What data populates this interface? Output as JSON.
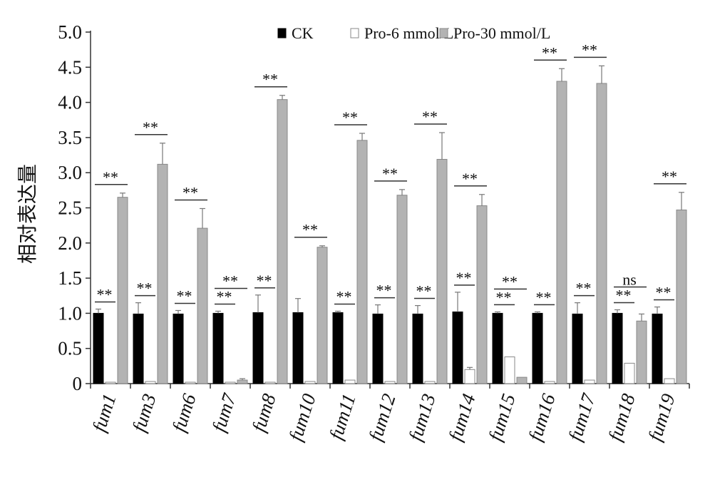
{
  "chart_data": {
    "type": "bar",
    "ylabel": "相对表达量",
    "ylim": [
      0,
      5.0
    ],
    "yticks": [
      "0",
      "0.5",
      "1.0",
      "1.5",
      "2.0",
      "2.5",
      "3.0",
      "3.5",
      "4.0",
      "4.5",
      "5.0"
    ],
    "legend_position": "top-right",
    "categories": [
      "fum1",
      "fum3",
      "fum6",
      "fum7",
      "fum8",
      "fum10",
      "fum11",
      "fum12",
      "fum13",
      "fum14",
      "fum15",
      "fum16",
      "fum17",
      "fum18",
      "fum19"
    ],
    "series": [
      {
        "name": "CK",
        "color": "#000000",
        "values": [
          1.0,
          0.99,
          0.99,
          1.0,
          1.01,
          1.01,
          1.01,
          0.99,
          0.99,
          1.02,
          1.0,
          1.0,
          0.99,
          1.0,
          0.99
        ],
        "errors": [
          0.06,
          0.16,
          0.05,
          0.03,
          0.25,
          0.2,
          0.02,
          0.13,
          0.12,
          0.28,
          0.02,
          0.02,
          0.16,
          0.05,
          0.1
        ]
      },
      {
        "name": "Pro-6 mmol/L",
        "color": "#ffffff",
        "values": [
          0.02,
          0.03,
          0.02,
          0.02,
          0.02,
          0.03,
          0.05,
          0.03,
          0.03,
          0.2,
          0.38,
          0.03,
          0.05,
          0.29,
          0.07
        ],
        "errors": [
          0.0,
          0.0,
          0.0,
          0.0,
          0.0,
          0.0,
          0.0,
          0.0,
          0.0,
          0.03,
          0.0,
          0.0,
          0.0,
          0.0,
          0.0
        ]
      },
      {
        "name": "Pro-30 mmol/L",
        "color": "#b3b3b3",
        "values": [
          2.65,
          3.12,
          2.21,
          0.05,
          4.04,
          1.94,
          3.46,
          2.68,
          3.19,
          2.53,
          0.09,
          4.3,
          4.27,
          0.89,
          2.47
        ],
        "errors": [
          0.06,
          0.3,
          0.28,
          0.02,
          0.06,
          0.02,
          0.1,
          0.08,
          0.38,
          0.16,
          0.0,
          0.18,
          0.25,
          0.1,
          0.25
        ]
      }
    ],
    "significance": [
      {
        "low": "**",
        "high": "**"
      },
      {
        "low": "**",
        "high": "**"
      },
      {
        "low": "**",
        "high": "**"
      },
      {
        "low": "**",
        "high": "**"
      },
      {
        "low": "**",
        "high": "**"
      },
      {
        "low": "",
        "high": "**"
      },
      {
        "low": "**",
        "high": "**"
      },
      {
        "low": "**",
        "high": "**"
      },
      {
        "low": "**",
        "high": "**"
      },
      {
        "low": "**",
        "high": "**"
      },
      {
        "low": "**",
        "high": "**"
      },
      {
        "low": "**",
        "high": "**"
      },
      {
        "low": "**",
        "high": "**"
      },
      {
        "low": "**",
        "high": "ns"
      },
      {
        "low": "**",
        "high": "**"
      }
    ]
  }
}
